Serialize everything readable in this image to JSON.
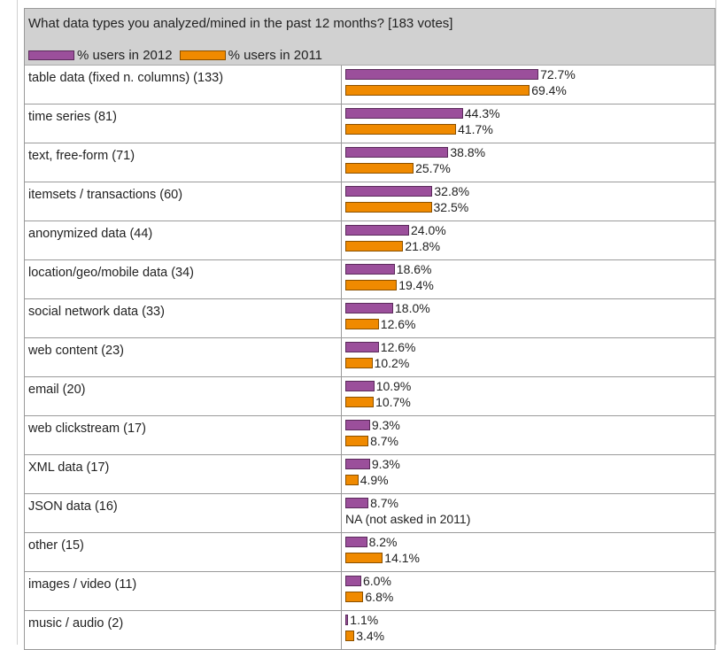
{
  "chart_data": {
    "type": "bar",
    "title": "What data types you analyzed/mined in the past 12 months? [183 votes]",
    "xlabel": "",
    "ylabel": "",
    "ylim": [
      0,
      100
    ],
    "categories": [
      "table data (fixed n. columns) (133)",
      "time series (81)",
      "text, free-form (71)",
      "itemsets / transactions (60)",
      "anonymized data (44)",
      "location/geo/mobile data (34)",
      "social network data (33)",
      "web content (23)",
      "email (20)",
      "web clickstream (17)",
      "XML data (17)",
      "JSON data (16)",
      "other (15)",
      "images / video (11)",
      "music / audio (2)"
    ],
    "series": [
      {
        "name": "% users in 2012",
        "color": "#9b4f9b",
        "values": [
          72.7,
          44.3,
          38.8,
          32.8,
          24.0,
          18.6,
          18.0,
          12.6,
          10.9,
          9.3,
          9.3,
          8.7,
          8.2,
          6.0,
          1.1
        ],
        "labels": [
          "72.7%",
          "44.3%",
          "38.8%",
          "32.8%",
          "24.0%",
          "18.6%",
          "18.0%",
          "12.6%",
          "10.9%",
          "9.3%",
          "9.3%",
          "8.7%",
          "8.2%",
          "6.0%",
          "1.1%"
        ]
      },
      {
        "name": "% users in 2011",
        "color": "#f08a00",
        "values": [
          69.4,
          41.7,
          25.7,
          32.5,
          21.8,
          19.4,
          12.6,
          10.2,
          10.7,
          8.7,
          4.9,
          null,
          14.1,
          6.8,
          3.4
        ],
        "labels": [
          "69.4%",
          "41.7%",
          "25.7%",
          "32.5%",
          "21.8%",
          "19.4%",
          "12.6%",
          "10.2%",
          "10.7%",
          "8.7%",
          "4.9%",
          "NA (not asked in 2011)",
          "14.1%",
          "6.8%",
          "3.4%"
        ]
      }
    ],
    "legend_position": "top-left",
    "grid": false
  }
}
